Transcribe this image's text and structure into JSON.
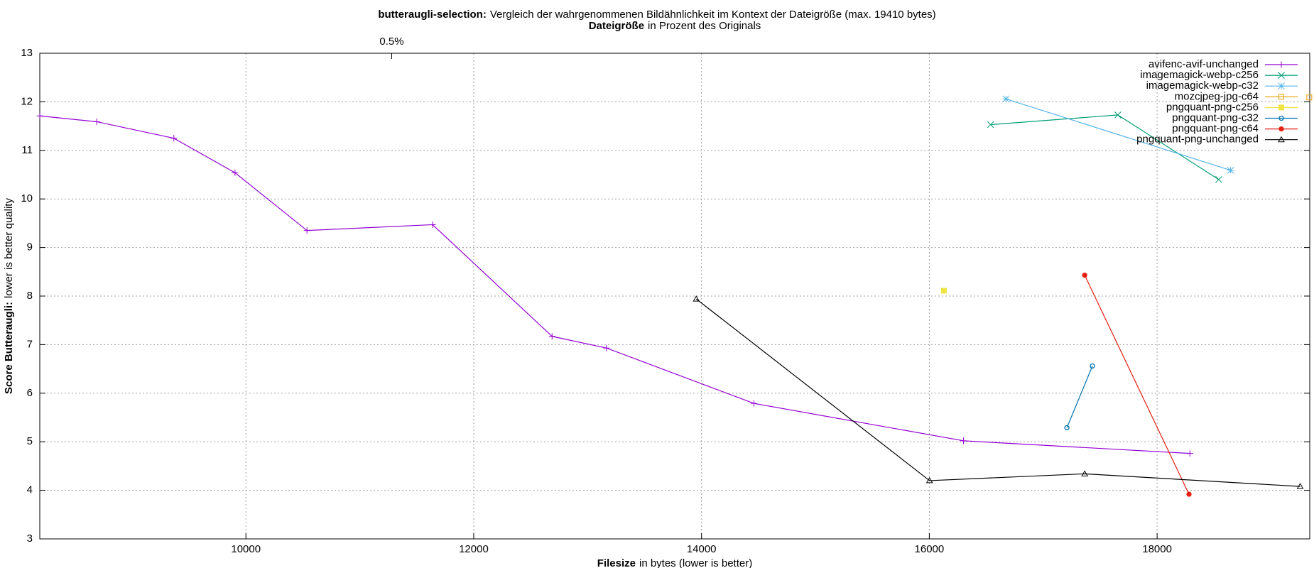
{
  "chart_data": {
    "type": "line",
    "title": {
      "bold": "butteraugli-selection:",
      "text": "Vergleich der wahrgenommenen Bildähnlichkeit im Kontext der Dateigröße (max. 19410 bytes)"
    },
    "x2_label": {
      "bold": "Dateigröße",
      "text": "in Prozent des Originals"
    },
    "x_label": {
      "bold": "Filesize",
      "text": "in bytes (lower is better)"
    },
    "y_label": {
      "bold": "Score Butteraugli:",
      "text": "lower is better quality"
    },
    "xlim": [
      8190,
      19340
    ],
    "ylim": [
      3,
      13
    ],
    "xticks": [
      10000,
      12000,
      14000,
      16000,
      18000
    ],
    "x2ticks": [
      {
        "value": 11280,
        "label": "0.5%"
      }
    ],
    "yticks": [
      3,
      4,
      5,
      6,
      7,
      8,
      9,
      10,
      11,
      12,
      13
    ],
    "grid": true,
    "legend": "top-right",
    "series": [
      {
        "name": "avifenc-avif-unchanged",
        "color": "#9400d3",
        "marker": "plus",
        "x": [
          8191,
          8690,
          9367,
          9904,
          10536,
          11639,
          12688,
          13165,
          14460,
          16300,
          18288
        ],
        "values": [
          11.71,
          11.59,
          11.25,
          10.54,
          9.35,
          9.47,
          7.17,
          6.93,
          5.79,
          5.02,
          4.76
        ]
      },
      {
        "name": "imagemagick-webp-c256",
        "color": "#009e73",
        "marker": "cross",
        "x": [
          16538,
          17655,
          18541
        ],
        "values": [
          11.53,
          11.73,
          10.4
        ]
      },
      {
        "name": "imagemagick-webp-c32",
        "color": "#56b4e9",
        "marker": "star",
        "x": [
          16672,
          18645
        ],
        "values": [
          12.06,
          10.59
        ]
      },
      {
        "name": "mozcjpeg-jpg-c64",
        "color": "#e69f00",
        "marker": "square",
        "x": [
          19336
        ],
        "values": [
          12.09
        ]
      },
      {
        "name": "pngquant-png-c256",
        "color": "#f0e442",
        "marker": "filled-square",
        "x": [
          16128
        ],
        "values": [
          8.11
        ]
      },
      {
        "name": "pngquant-png-c32",
        "color": "#0072b2",
        "marker": "circle",
        "x": [
          17208,
          17432
        ],
        "values": [
          5.29,
          6.56
        ]
      },
      {
        "name": "pngquant-png-c64",
        "color": "#e51e10",
        "marker": "filled-circle",
        "x": [
          17364,
          18280
        ],
        "values": [
          8.43,
          3.92
        ]
      },
      {
        "name": "pngquant-png-unchanged",
        "color": "#000000",
        "marker": "triangle",
        "x": [
          13954,
          16002,
          17364,
          19256
        ],
        "values": [
          7.94,
          4.2,
          4.34,
          4.08
        ]
      }
    ]
  }
}
